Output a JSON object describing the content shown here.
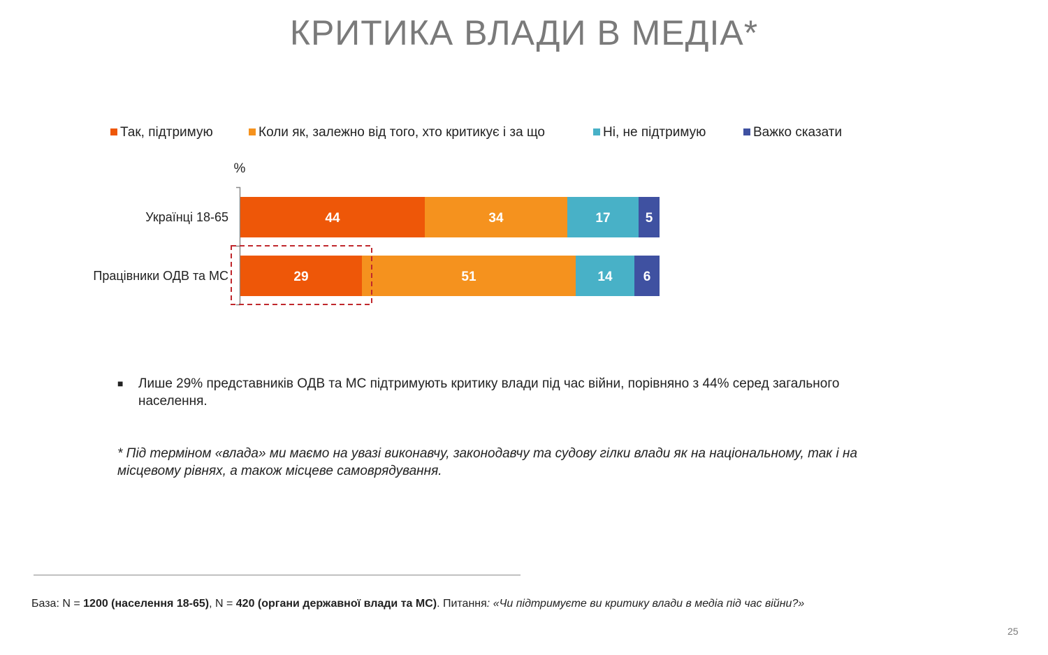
{
  "title": "КРИТИКА ВЛАДИ В МЕДІА*",
  "legend": [
    {
      "label": "Так, підтримую",
      "color": "#ee5708"
    },
    {
      "label": "Коли як, залежно від того, хто критикує і за що",
      "color": "#f5921e"
    },
    {
      "label": "Ні, не підтримую",
      "color": "#48b1c7"
    },
    {
      "label": "Важко сказати",
      "color": "#3f51a1"
    }
  ],
  "chart_data": {
    "type": "bar",
    "orientation": "horizontal",
    "stacked": true,
    "unit": "%",
    "categories": [
      "Українці 18-65",
      "Працівники ОДВ та МС"
    ],
    "series": [
      {
        "name": "Так, підтримую",
        "values": [
          44,
          29
        ],
        "color": "#ee5708"
      },
      {
        "name": "Коли як, залежно від того, хто критикує і за що",
        "values": [
          34,
          51
        ],
        "color": "#f5921e"
      },
      {
        "name": "Ні, не підтримую",
        "values": [
          17,
          14
        ],
        "color": "#48b1c7"
      },
      {
        "name": "Важко сказати",
        "values": [
          5,
          6
        ],
        "color": "#3f51a1"
      }
    ],
    "xlim": [
      0,
      100
    ],
    "grid": false,
    "legend_position": "top",
    "highlight": {
      "category": "Працівники ОДВ та МС",
      "series": "Так, підтримую",
      "style": "dashed-box",
      "color": "#c0282d"
    }
  },
  "bullet": "Лише 29% представників ОДВ та МС підтримують критику влади під час війни, порівняно з 44% серед загального населення.",
  "note": "* Під терміном «влада» ми маємо на увазі виконавчу, законодавчу та судову гілки влади як на національному, так і на місцевому рівнях, а також місцеве самоврядування.",
  "footnote": {
    "base_label": "База: N = ",
    "n1": "1200 (населення 18-65)",
    "sep": ", N = ",
    "n2": "420 (органи державної влади та МС)",
    "question_label": ". Питання",
    "question": ": «Чи підтримуєте ви критику влади в медіа під час війни?»"
  },
  "page_number": "25"
}
